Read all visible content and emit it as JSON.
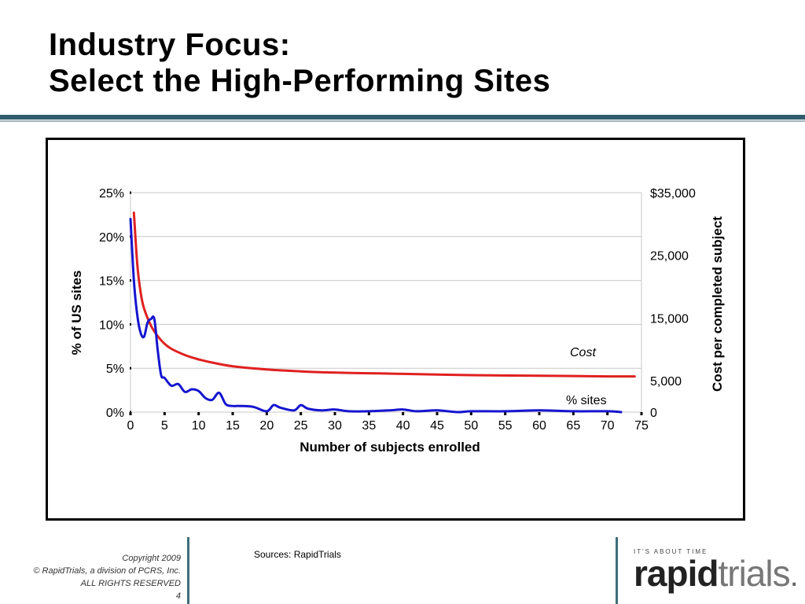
{
  "slide": {
    "title_line1": "Industry Focus:",
    "title_line2": "Select the High-Performing Sites",
    "sources": "Sources: RapidTrials",
    "footer": {
      "copyright": "Copyright 2009",
      "company": "© RapidTrials, a division of PCRS, Inc.",
      "rights": "ALL RIGHTS RESERVED",
      "page": "4"
    },
    "logo": {
      "tagline": "IT'S ABOUT TIME",
      "bold": "rapid",
      "light": "trials",
      "suffix": "."
    }
  },
  "chart_data": {
    "type": "line",
    "xlabel": "Number of subjects enrolled",
    "ylabel_left": "% of  US  sites",
    "ylabel_right": "Cost per completed subject",
    "x_ticks": [
      0,
      5,
      10,
      15,
      20,
      25,
      30,
      35,
      40,
      45,
      50,
      55,
      60,
      65,
      70,
      75
    ],
    "xlim": [
      0,
      75
    ],
    "y_left_ticks": [
      "0%",
      "5%",
      "10%",
      "15%",
      "20%",
      "25%"
    ],
    "y_left_lim": [
      0,
      25
    ],
    "y_right_ticks": [
      "0",
      "5,000",
      "15,000",
      "25,000",
      "$35,000"
    ],
    "y_right_tick_values": [
      0,
      5000,
      15000,
      25000,
      35000
    ],
    "y_right_lim": [
      0,
      35000
    ],
    "grid": "horizontal",
    "colors": {
      "cost": "#e02020",
      "sites": "#1515d0"
    },
    "series": [
      {
        "name": "Cost",
        "axis": "right",
        "x": [
          0.5,
          1,
          1.5,
          2,
          3,
          4,
          5,
          6,
          8,
          10,
          12,
          15,
          20,
          25,
          30,
          35,
          40,
          50,
          60,
          70,
          74
        ],
        "values": [
          31800,
          23500,
          19000,
          16500,
          13800,
          12100,
          10900,
          10100,
          9100,
          8400,
          7900,
          7300,
          6800,
          6500,
          6300,
          6200,
          6100,
          5900,
          5800,
          5700,
          5700
        ]
      },
      {
        "name": "% sites",
        "axis": "left",
        "x": [
          0,
          0.5,
          1,
          1.5,
          2,
          2.5,
          3,
          3.5,
          4,
          4.5,
          5,
          6,
          7,
          8,
          9,
          10,
          11,
          12,
          13,
          14,
          15,
          16,
          18,
          20,
          21,
          22,
          24,
          25,
          26,
          28,
          30,
          32,
          35,
          38,
          40,
          42,
          45,
          48,
          50,
          55,
          60,
          65,
          70,
          72
        ],
        "values": [
          22.0,
          15.0,
          11.0,
          9.0,
          8.6,
          10.2,
          10.6,
          10.6,
          7.0,
          4.2,
          3.9,
          3.0,
          3.2,
          2.3,
          2.6,
          2.4,
          1.6,
          1.4,
          2.2,
          0.9,
          0.7,
          0.7,
          0.6,
          0.1,
          0.8,
          0.5,
          0.2,
          0.8,
          0.4,
          0.2,
          0.3,
          0.1,
          0.1,
          0.2,
          0.3,
          0.1,
          0.2,
          0.0,
          0.1,
          0.1,
          0.2,
          0.1,
          0.1,
          0.0
        ]
      }
    ]
  }
}
